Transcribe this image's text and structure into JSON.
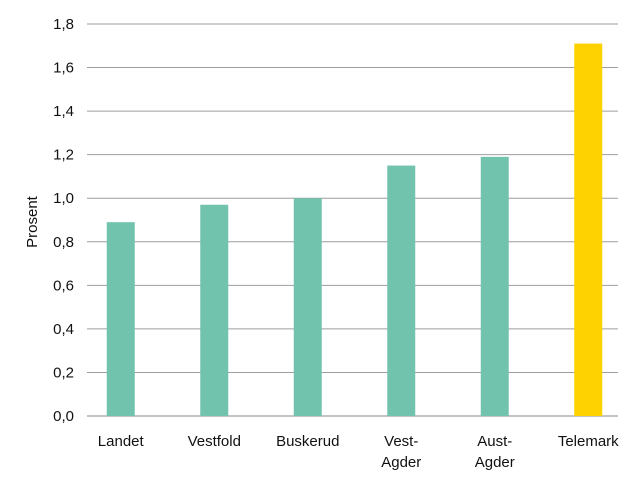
{
  "chart_data": {
    "type": "bar",
    "title": "",
    "xlabel": "",
    "ylabel": "Prosent",
    "ylim": [
      0,
      1.8
    ],
    "yticks": [
      "0,0",
      "0,2",
      "0,4",
      "0,6",
      "0,8",
      "1,0",
      "1,2",
      "1,4",
      "1,6",
      "1,8"
    ],
    "grid": true,
    "legend": "none",
    "categories": [
      {
        "label": "Landet",
        "lines": [
          "Landet"
        ]
      },
      {
        "label": "Vestfold",
        "lines": [
          "Vestfold"
        ]
      },
      {
        "label": "Buskerud",
        "lines": [
          "Buskerud"
        ]
      },
      {
        "label": "Vest-Agder",
        "lines": [
          "Vest-",
          "Agder"
        ]
      },
      {
        "label": "Aust-Agder",
        "lines": [
          "Aust-",
          "Agder"
        ]
      },
      {
        "label": "Telemark",
        "lines": [
          "Telemark"
        ]
      }
    ],
    "values": [
      0.89,
      0.97,
      1.0,
      1.15,
      1.19,
      1.71
    ],
    "colors": {
      "default": "#72c3ae",
      "highlight": "#fdd200",
      "highlight_category": "Telemark",
      "grid": "#9e9e9e",
      "axis": "#888888"
    }
  }
}
